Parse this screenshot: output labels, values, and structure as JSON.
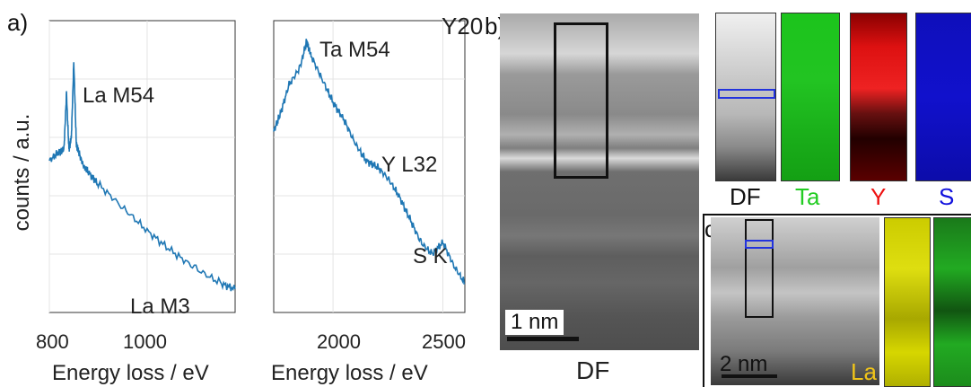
{
  "panel_a": {
    "letter": "a)",
    "ylabel": "counts / a.u.",
    "left_plot": {
      "xlabel": "Energy loss / eV",
      "xticks": [
        "800",
        "1000"
      ],
      "annotations": [
        "La M54",
        "La M3"
      ]
    },
    "right_plot": {
      "xlabel": "Energy loss / eV",
      "xticks": [
        "2000",
        "2500"
      ],
      "annotations": [
        "Ta M54",
        "Y L32",
        "S K"
      ]
    },
    "line_color": "#1f77b4"
  },
  "panel_b": {
    "letter": "b)",
    "sample": "Y20",
    "scale_bar": "1 nm",
    "image_label": "DF",
    "maps": [
      {
        "label": "DF",
        "color": "#111111"
      },
      {
        "label": "Ta",
        "color": "#22cc22"
      },
      {
        "label": "Y",
        "color": "#ee1111"
      },
      {
        "label": "S",
        "color": "#1111dd"
      }
    ]
  },
  "panel_c": {
    "letter": "c)",
    "scale_bar": "2 nm",
    "map_label": "La",
    "map_label_color": "#f0c419"
  },
  "chart_data": [
    {
      "type": "line",
      "title": "",
      "xlabel": "Energy loss / eV",
      "ylabel": "counts / a.u.",
      "xlim": [
        800,
        1180
      ],
      "series": [
        {
          "x": [
            800,
            820,
            830,
            835,
            840,
            845,
            850,
            855,
            860,
            870,
            880,
            900,
            950,
            1000,
            1050,
            1100,
            1150,
            1180
          ],
          "y": [
            0.52,
            0.55,
            0.56,
            0.75,
            0.56,
            0.6,
            0.86,
            0.58,
            0.55,
            0.5,
            0.48,
            0.44,
            0.36,
            0.28,
            0.21,
            0.15,
            0.1,
            0.08
          ]
        }
      ]
    },
    {
      "type": "line",
      "title": "",
      "xlabel": "Energy loss / eV",
      "ylabel": "counts / a.u.",
      "xlim": [
        1730,
        2600
      ],
      "series": [
        {
          "x": [
            1730,
            1760,
            1800,
            1850,
            1880,
            1900,
            1950,
            2000,
            2050,
            2100,
            2150,
            2200,
            2250,
            2300,
            2350,
            2400,
            2450,
            2500,
            2550,
            2600
          ],
          "y": [
            0.62,
            0.68,
            0.78,
            0.84,
            0.93,
            0.88,
            0.8,
            0.72,
            0.66,
            0.58,
            0.52,
            0.5,
            0.46,
            0.4,
            0.32,
            0.24,
            0.2,
            0.24,
            0.16,
            0.1
          ]
        }
      ]
    }
  ]
}
